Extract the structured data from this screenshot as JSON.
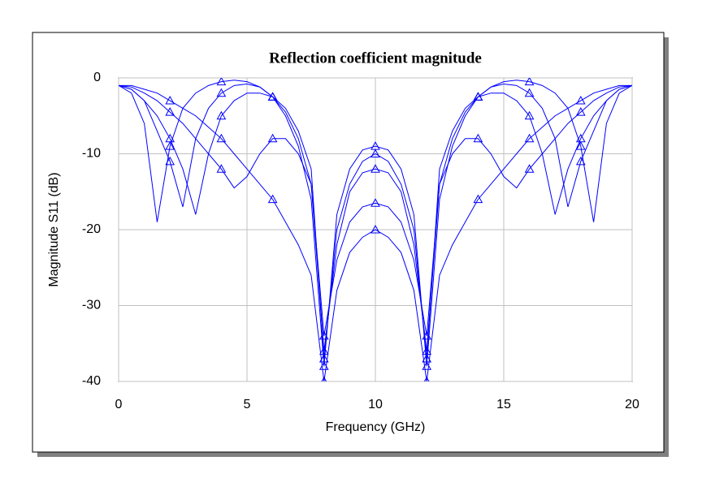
{
  "chart_data": {
    "type": "line",
    "title": "Reflection coefficient magnitude",
    "xlabel": "Frequency (GHz)",
    "ylabel": "Magnitude S11 (dB)",
    "x": [
      0,
      0.5,
      1,
      1.5,
      2,
      2.5,
      3,
      3.5,
      4,
      4.5,
      5,
      5.5,
      6,
      6.5,
      7,
      7.5,
      8,
      8.5,
      9,
      9.5,
      10,
      10.5,
      11,
      11.5,
      12,
      12.5,
      13,
      13.5,
      14,
      14.5,
      15,
      15.5,
      16,
      16.5,
      17,
      17.5,
      18,
      18.5,
      19,
      19.5,
      20
    ],
    "series": [
      {
        "color": "#0000ff",
        "values": [
          -1,
          -2,
          -6,
          -19,
          -9,
          -4,
          -2,
          -1,
          -0.5,
          -0.3,
          -0.5,
          -1.2,
          -2.5,
          -5,
          -9,
          -16,
          -38,
          -18,
          -12,
          -9.5,
          -9,
          -9.5,
          -12,
          -18,
          -38,
          -16,
          -9,
          -5,
          -2.5,
          -1.2,
          -0.5,
          -0.3,
          -0.5,
          -1,
          -2,
          -4,
          -9,
          -19,
          -6,
          -2,
          -1
        ]
      },
      {
        "color": "#0000ff",
        "values": [
          -1,
          -1.5,
          -3,
          -5,
          -8,
          -12,
          -18,
          -10,
          -5,
          -3,
          -2,
          -2,
          -2.5,
          -4,
          -7,
          -12,
          -37,
          -20,
          -14,
          -11,
          -10,
          -11,
          -14,
          -20,
          -37,
          -12,
          -7,
          -4,
          -2.5,
          -2,
          -2,
          -3,
          -5,
          -10,
          -18,
          -12,
          -8,
          -5,
          -3,
          -1.5,
          -1
        ]
      },
      {
        "color": "#0000ff",
        "values": [
          -1,
          -1.2,
          -2,
          -3,
          -4.5,
          -6,
          -8,
          -10,
          -12,
          -14.5,
          -13,
          -10,
          -8,
          -8,
          -10,
          -14,
          -34,
          -24,
          -19,
          -17,
          -16.5,
          -17,
          -19,
          -24,
          -34,
          -14,
          -10,
          -8,
          -8,
          -10,
          -13,
          -14.5,
          -12,
          -10,
          -8,
          -6,
          -4.5,
          -3,
          -2,
          -1.2,
          -1
        ]
      },
      {
        "color": "#0000ff",
        "values": [
          -1,
          -1,
          -1.5,
          -2,
          -3,
          -4,
          -5,
          -6.5,
          -8,
          -10,
          -12,
          -14,
          -16,
          -19,
          -22,
          -26,
          -40,
          -28,
          -23,
          -21,
          -20,
          -21,
          -23,
          -28,
          -40,
          -26,
          -22,
          -19,
          -16,
          -14,
          -12,
          -10,
          -8,
          -6.5,
          -5,
          -4,
          -3,
          -2,
          -1.5,
          -1,
          -1
        ]
      },
      {
        "color": "#0000ff",
        "values": [
          -1,
          -1.5,
          -3,
          -7,
          -11,
          -17,
          -8,
          -4,
          -2,
          -1,
          -0.8,
          -1.2,
          -2.5,
          -4.5,
          -8,
          -14,
          -36,
          -22,
          -15,
          -12.5,
          -12,
          -12.5,
          -15,
          -22,
          -36,
          -14,
          -8,
          -4.5,
          -2.5,
          -1.2,
          -0.8,
          -1,
          -2,
          -4,
          -8,
          -17,
          -11,
          -7,
          -3,
          -1.5,
          -1
        ]
      }
    ],
    "marker": "triangle",
    "xlim": [
      0,
      20
    ],
    "xticks": [
      0,
      5,
      10,
      15,
      20
    ],
    "ylim": [
      -40,
      0
    ],
    "yticks": [
      0,
      -10,
      -20,
      -30,
      -40
    ],
    "grid": true
  }
}
